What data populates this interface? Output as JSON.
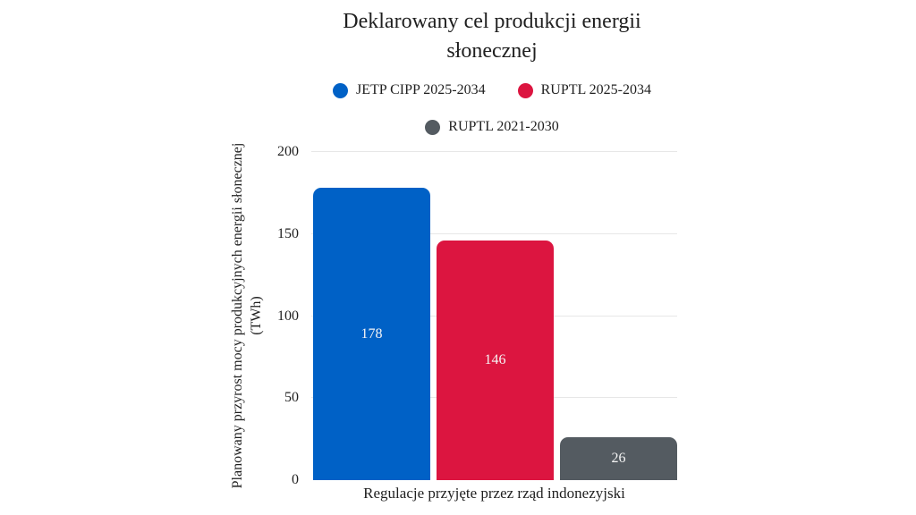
{
  "chart_data": {
    "type": "bar",
    "title": "Deklarowany cel produkcji energii słonecznej",
    "xlabel": "Regulacje przyjęte przez rząd indonezyjski",
    "ylabel": "Planowany przyrost mocy produkcyjnych energii słonecznej (TWh)",
    "ylim": [
      0,
      200
    ],
    "yticks": [
      0,
      50,
      100,
      150,
      200
    ],
    "grid": true,
    "legend_position": "top-center",
    "series": [
      {
        "name": "JETP CIPP 2025-2034",
        "value": 178,
        "color": "#0061C6"
      },
      {
        "name": "RUPTL 2025-2034",
        "value": 146,
        "color": "#DC1540"
      },
      {
        "name": "RUPTL 2021-2030",
        "value": 26,
        "color": "#545B61"
      }
    ],
    "colors": {
      "text": "#1F1F1F",
      "grid": "#E7E7E7",
      "value_label": "#F5F5F5",
      "background": "#FFFFFF"
    }
  }
}
